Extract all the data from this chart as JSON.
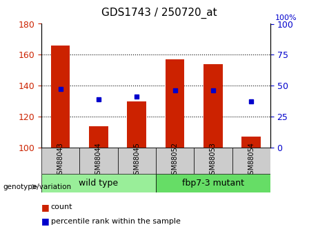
{
  "title": "GDS1743 / 250720_at",
  "samples": [
    "GSM88043",
    "GSM88044",
    "GSM88045",
    "GSM88052",
    "GSM88053",
    "GSM88054"
  ],
  "counts": [
    166,
    114,
    130,
    157,
    154,
    107
  ],
  "percentile_ranks": [
    138,
    131,
    133,
    137,
    137,
    130
  ],
  "ylim_left": [
    100,
    180
  ],
  "ylim_right": [
    0,
    100
  ],
  "yticks_left": [
    100,
    120,
    140,
    160,
    180
  ],
  "yticks_right": [
    0,
    25,
    50,
    75,
    100
  ],
  "bar_color": "#cc2200",
  "dot_color": "#0000cc",
  "grid_color": "#000000",
  "groups": [
    {
      "label": "wild type",
      "indices": [
        0,
        1,
        2
      ],
      "color": "#99ee99"
    },
    {
      "label": "fbp7-3 mutant",
      "indices": [
        3,
        4,
        5
      ],
      "color": "#66dd66"
    }
  ],
  "genotype_label": "genotype/variation",
  "legend_count_label": "count",
  "legend_percentile_label": "percentile rank within the sample",
  "tick_label_gray": "#cccccc",
  "sample_bg_color": "#cccccc"
}
